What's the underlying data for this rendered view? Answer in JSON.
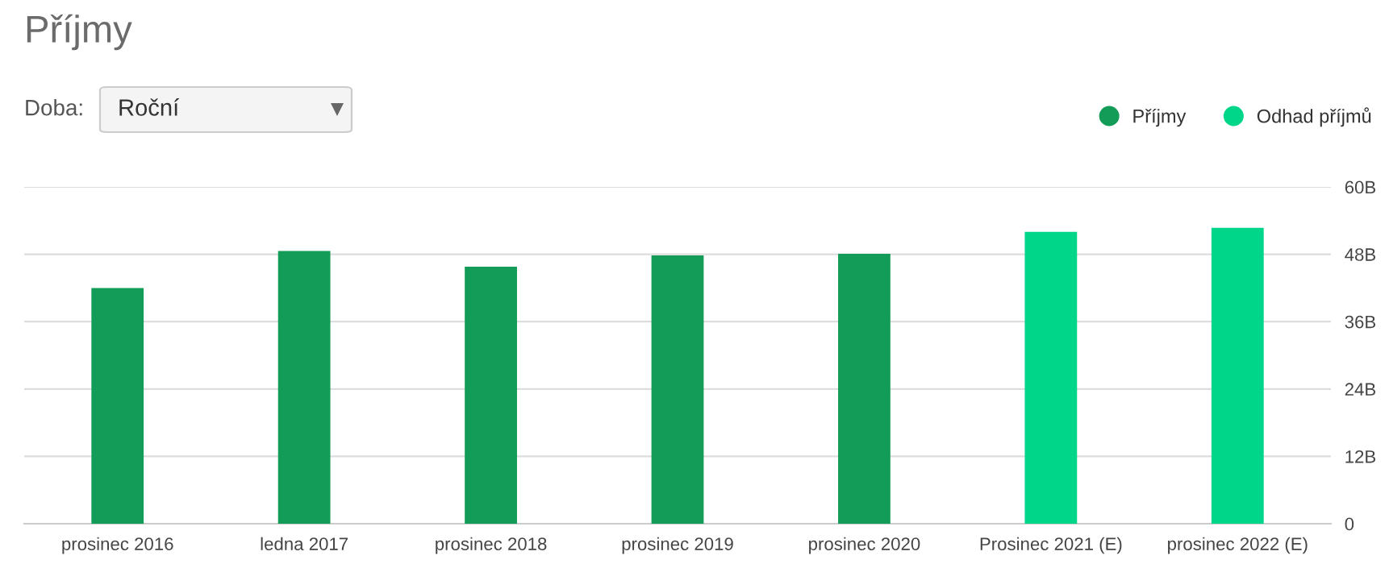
{
  "chart_data": {
    "type": "bar",
    "title": "Příjmy",
    "annotations": [
      "Doba:",
      "Roční"
    ],
    "categories": [
      "prosinec 2016",
      "ledna 2017",
      "prosinec 2018",
      "prosinec 2019",
      "prosinec 2020",
      "Prosinec 2021 (E)",
      "prosinec 2022 (E)"
    ],
    "series": [
      {
        "name": "Příjmy",
        "color": "#139c57",
        "values": [
          42.0,
          48.6,
          45.8,
          47.8,
          48.1,
          null,
          null
        ]
      },
      {
        "name": "Odhad příjmů",
        "color": "#00d68a",
        "values": [
          null,
          null,
          null,
          null,
          null,
          52.0,
          52.7
        ]
      }
    ],
    "stacked": true,
    "ylim": [
      0,
      60
    ],
    "yticks": [
      0,
      {
        "value": 12,
        "label": "12B"
      },
      {
        "value": 24,
        "label": "24B"
      },
      {
        "value": 36,
        "label": "36B"
      },
      {
        "value": 48,
        "label": "48B"
      },
      {
        "value": 60,
        "label": "60B"
      }
    ],
    "grid": "y",
    "legend": "top right"
  }
}
